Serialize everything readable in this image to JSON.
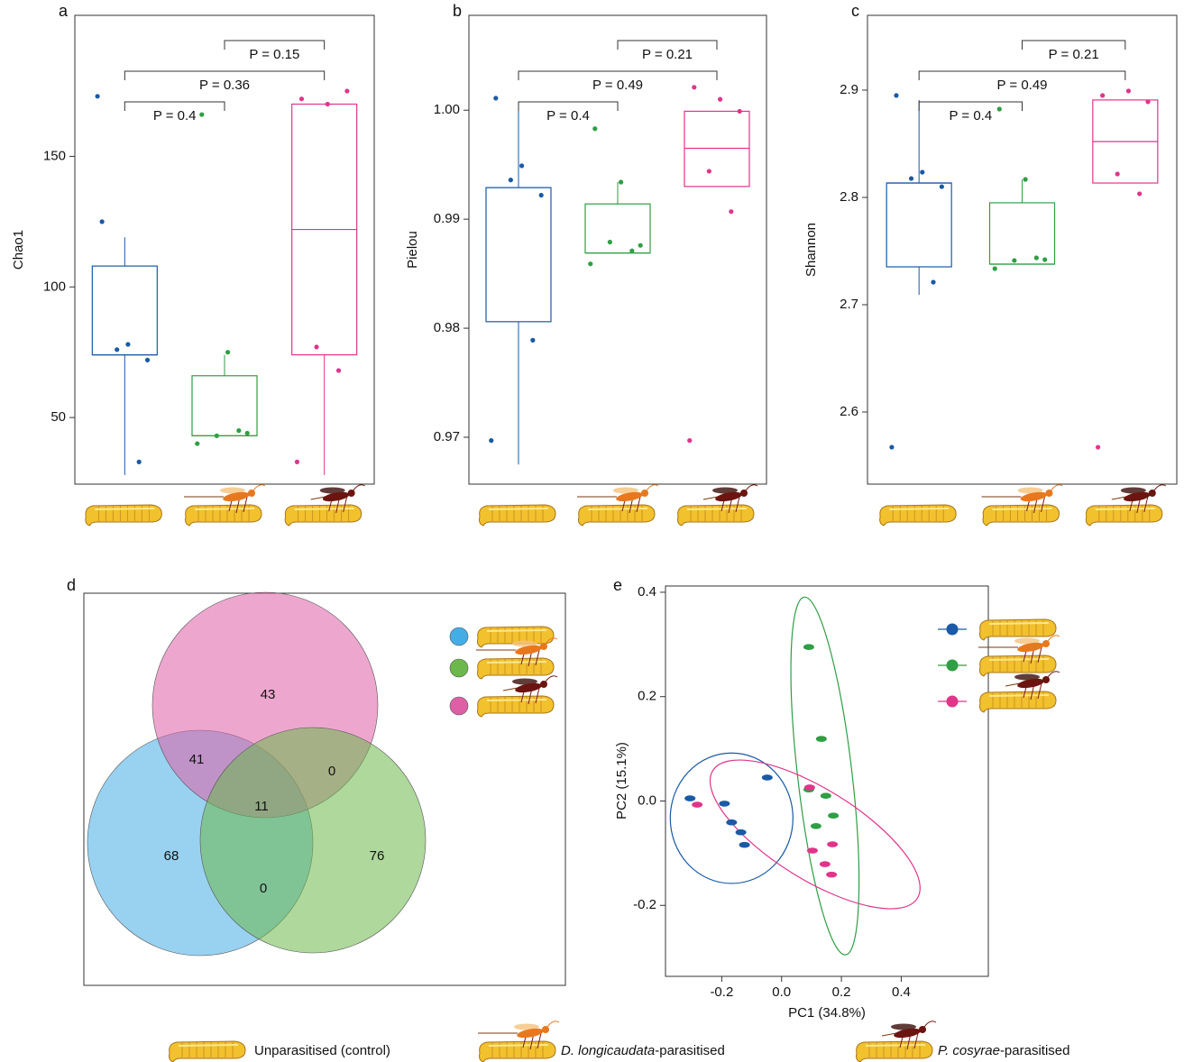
{
  "chart_data": [
    {
      "type": "box",
      "label": "a",
      "ylabel": "Chao1",
      "ylim": [
        24.5,
        204
      ],
      "yticks": [
        50,
        100,
        150
      ],
      "groups": [
        {
          "color": "#1a5aa6",
          "box": {
            "low": 28,
            "q1": 74,
            "median": 74,
            "q3": 108,
            "high": 119
          },
          "points": [
            125,
            78,
            72,
            76,
            33,
            173
          ]
        },
        {
          "color": "#2f9e44",
          "box": {
            "low": 43,
            "q1": 43,
            "median": 43,
            "q3": 66,
            "high": 74
          },
          "points": [
            166,
            75,
            44,
            43,
            45,
            40
          ]
        },
        {
          "color": "#e0358b",
          "box": {
            "low": 28,
            "q1": 74,
            "median": 122,
            "q3": 170,
            "high": 170
          },
          "points": [
            172,
            170,
            175,
            77,
            68,
            33
          ]
        }
      ],
      "comparisons": [
        {
          "groups": [
            0,
            1
          ],
          "label": "P = 0.4"
        },
        {
          "groups": [
            0,
            2
          ],
          "label": "P = 0.36"
        },
        {
          "groups": [
            1,
            2
          ],
          "label": "P = 0.15"
        }
      ]
    },
    {
      "type": "box",
      "label": "b",
      "ylabel": "Pielou",
      "ylim": [
        0.9657,
        1.0087
      ],
      "yticks": [
        0.97,
        0.98,
        0.99,
        {
          "value": 1,
          "label": "1.00"
        }
      ],
      "groups": [
        {
          "color": "#1a5aa6",
          "box": {
            "low": 0.9675,
            "q1": 0.9806,
            "median": 0.9929,
            "q3": 0.9929,
            "high": 1.0
          },
          "points": [
            1.0011,
            0.9949,
            0.9922,
            0.9936,
            0.9789,
            0.9697
          ]
        },
        {
          "color": "#2f9e44",
          "box": {
            "low": 0.9869,
            "q1": 0.9869,
            "median": 0.9869,
            "q3": 0.9914,
            "high": 0.9934
          },
          "points": [
            0.9983,
            0.9934,
            0.9876,
            0.9879,
            0.9871,
            0.9859
          ]
        },
        {
          "color": "#e0358b",
          "box": {
            "low": 0.993,
            "q1": 0.993,
            "median": 0.9965,
            "q3": 0.9999,
            "high": 0.9999
          },
          "points": [
            1.0021,
            1.001,
            0.9999,
            0.9944,
            0.9907,
            0.9697
          ]
        }
      ],
      "comparisons": [
        {
          "groups": [
            0,
            1
          ],
          "label": "P = 0.4"
        },
        {
          "groups": [
            0,
            2
          ],
          "label": "P = 0.49"
        },
        {
          "groups": [
            1,
            2
          ],
          "label": "P = 0.21"
        }
      ]
    },
    {
      "type": "box",
      "label": "c",
      "ylabel": "Shannon",
      "ylim": [
        2.5328,
        2.9697
      ],
      "yticks": [
        2.6,
        2.7,
        2.8,
        2.9
      ],
      "groups": [
        {
          "color": "#1a5aa6",
          "box": {
            "low": 2.7092,
            "q1": 2.7353,
            "median": 2.8134,
            "q3": 2.8134,
            "high": 2.8908
          },
          "points": [
            2.895,
            2.8235,
            2.81,
            2.8176,
            2.721,
            2.5672
          ]
        },
        {
          "color": "#2f9e44",
          "box": {
            "low": 2.7378,
            "q1": 2.7378,
            "median": 2.7378,
            "q3": 2.795,
            "high": 2.8168
          },
          "points": [
            2.8823,
            2.8168,
            2.742,
            2.7412,
            2.7437,
            2.7336
          ]
        },
        {
          "color": "#e0358b",
          "box": {
            "low": 2.8134,
            "q1": 2.8134,
            "median": 2.8521,
            "q3": 2.8908,
            "high": 2.8908
          },
          "points": [
            2.895,
            2.8992,
            2.8891,
            2.8218,
            2.8034,
            2.5672
          ]
        }
      ],
      "comparisons": [
        {
          "groups": [
            0,
            1
          ],
          "label": "P = 0.4"
        },
        {
          "groups": [
            0,
            2
          ],
          "label": "P = 0.49"
        },
        {
          "groups": [
            1,
            2
          ],
          "label": "P = 0.21"
        }
      ]
    },
    {
      "type": "venn",
      "label": "d",
      "sets": [
        {
          "color": "#45ade6"
        },
        {
          "color": "#6cb84a"
        },
        {
          "color": "#de5fa6"
        }
      ],
      "regions": [
        {
          "sets": [
            2
          ],
          "value": 43
        },
        {
          "sets": [
            0,
            2
          ],
          "value": 41
        },
        {
          "sets": [
            1,
            2
          ],
          "value": 0
        },
        {
          "sets": [
            0,
            1,
            2
          ],
          "value": 11
        },
        {
          "sets": [
            0
          ],
          "value": 68
        },
        {
          "sets": [
            1
          ],
          "value": 76
        },
        {
          "sets": [
            0,
            1
          ],
          "value": 0
        }
      ]
    },
    {
      "type": "scatter",
      "label": "e",
      "xlabel": "PC1 (34.8%)",
      "ylabel": "PC2 (15.1%)",
      "xlim": [
        -0.388,
        0.691
      ],
      "ylim": [
        -0.336,
        0.412
      ],
      "xticks": [
        -0.2,
        {
          "value": 0,
          "label": "0.0"
        },
        0.2,
        0.4
      ],
      "yticks": [
        -0.2,
        {
          "value": 0,
          "label": "0.0"
        },
        0.2,
        0.4
      ],
      "series": [
        {
          "color": "#1a5aa6",
          "x": [
            -0.306,
            -0.191,
            -0.048,
            -0.167,
            -0.136,
            -0.124
          ],
          "y": [
            0.005,
            -0.005,
            0.045,
            -0.041,
            -0.06,
            -0.084
          ],
          "ellipse": {
            "center": [
              -0.167,
              -0.033
            ],
            "radii": [
              0.205,
              0.125
            ],
            "angle": 0
          }
        },
        {
          "color": "#2f9e44",
          "x": [
            0.091,
            0.133,
            0.091,
            0.148,
            0.173,
            0.115
          ],
          "y": [
            0.295,
            0.119,
            0.022,
            0.01,
            -0.028,
            -0.048
          ],
          "ellipse": {
            "center": [
              0.145,
              0.048
            ],
            "radii": [
              0.091,
              0.345
            ],
            "angle": -6.6
          }
        },
        {
          "color": "#e0358b",
          "x": [
            -0.282,
            0.094,
            0.103,
            0.17,
            0.145,
            0.167
          ],
          "y": [
            -0.007,
            0.026,
            -0.095,
            -0.083,
            -0.121,
            -0.141
          ],
          "ellipse": {
            "center": [
              0.112,
              -0.064
            ],
            "radii": [
              0.403,
              0.086
            ],
            "angle": 32
          }
        }
      ]
    }
  ],
  "legend": [
    {
      "text": "Unparasitised (control)"
    },
    {
      "species": "D. longicaudata",
      "text": "-parasitised"
    },
    {
      "species": "P. cosyrae",
      "text": "-parasitised"
    }
  ]
}
